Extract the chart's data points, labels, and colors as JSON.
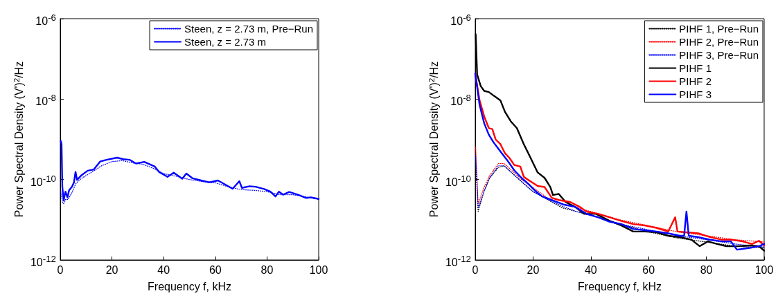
{
  "chart_data": [
    {
      "type": "line",
      "xlabel": "Frequency f, kHz",
      "ylabel": "Power Spectral Density (V')$^{2}$/Hz",
      "xlim": [
        0,
        100
      ],
      "xticks": [
        0,
        20,
        40,
        60,
        80,
        100
      ],
      "ylim": [
        1e-12,
        1e-06
      ],
      "yticks": [
        {
          "value": 1e-12,
          "label": "10$^{-12}$"
        },
        {
          "value": 1e-10,
          "label": "10$^{-10}$"
        },
        {
          "value": 1e-08,
          "label": "10$^{-8}$"
        },
        {
          "value": 1e-06,
          "label": "10$^{-6}$"
        }
      ],
      "log": "y",
      "legend": "top right",
      "marker": "none",
      "series": [
        {
          "name": "Steen, z = 2.73 m, Pre−Run",
          "color": "#0000ff",
          "line_style": "dotted",
          "x": [
            0.2,
            0.8,
            1.3,
            2,
            3,
            4.5,
            6,
            8,
            12,
            16,
            20,
            24,
            28,
            32,
            36,
            40,
            45,
            50,
            55,
            60,
            65,
            70,
            75,
            80,
            85,
            90,
            95,
            100
          ],
          "values": [
            5e-11,
            2.8e-11,
            2.5e-11,
            3.2e-11,
            3.2e-11,
            4.7e-11,
            7.9e-11,
            1.05e-10,
            1.5e-10,
            2.2e-10,
            2.8e-10,
            2.95e-10,
            2.6e-10,
            2.4e-10,
            1.9e-10,
            1.4e-10,
            1.2e-10,
            1e-10,
            8.9e-11,
            8.3e-11,
            6.6e-11,
            5.6e-11,
            5.4e-11,
            5e-11,
            4.2e-11,
            4.2e-11,
            3.7e-11,
            3.2e-11
          ]
        },
        {
          "name": "Steen, z = 2.73 m",
          "color": "#0000ff",
          "line_style": "solid",
          "x": [
            0.2,
            0.5,
            0.8,
            1.3,
            2,
            2.8,
            3.4,
            4.5,
            5.3,
            5.9,
            6.5,
            8.1,
            10.6,
            13,
            15.4,
            17.9,
            22,
            24.4,
            26.8,
            29.3,
            32.5,
            36.6,
            38.2,
            41.5,
            43.9,
            47.2,
            48.8,
            51.2,
            54.5,
            57.7,
            61,
            63.4,
            66.7,
            69.3,
            70.3,
            73.2,
            75.6,
            78.9,
            81.3,
            83.3,
            84.6,
            86.2,
            88.6,
            92,
            95,
            97,
            100
          ],
          "values": [
            9.1e-10,
            7.6e-10,
            6.6e-11,
            3e-11,
            5e-11,
            3.6e-11,
            5.4e-11,
            6.6e-11,
            8.5e-11,
            1.55e-10,
            9.8e-11,
            1.26e-10,
            1.66e-10,
            1.78e-10,
            2.8e-10,
            3.1e-10,
            3.5e-10,
            3.2e-10,
            3.1e-10,
            2.5e-10,
            2.75e-10,
            2.1e-10,
            1.55e-10,
            1.17e-10,
            1.48e-10,
            1.05e-10,
            1.41e-10,
            1.07e-10,
            9.5e-11,
            8.5e-11,
            9.5e-11,
            7.8e-11,
            5.9e-11,
            9.1e-11,
            6.2e-11,
            6.8e-11,
            6.6e-11,
            5.8e-11,
            5e-11,
            3.8e-11,
            5e-11,
            4.2e-11,
            4.9e-11,
            4.2e-11,
            3.5e-11,
            3.6e-11,
            3.3e-11
          ]
        }
      ]
    },
    {
      "type": "line",
      "xlabel": "Frequency f, kHz",
      "ylabel": "Power Spectral Density (V')$^{2}$/Hz",
      "xlim": [
        0,
        100
      ],
      "xticks": [
        0,
        20,
        40,
        60,
        80,
        100
      ],
      "ylim": [
        1e-12,
        1e-06
      ],
      "yticks": [
        {
          "value": 1e-12,
          "label": "10$^{-12}$"
        },
        {
          "value": 1e-10,
          "label": "10$^{-10}$"
        },
        {
          "value": 1e-08,
          "label": "10$^{-8}$"
        },
        {
          "value": 1e-06,
          "label": "10$^{-6}$"
        }
      ],
      "log": "y",
      "legend": "top right",
      "marker": "none",
      "series": [
        {
          "name": "PIHF 1, Pre−Run",
          "color": "#000000",
          "line_style": "dotted",
          "x": [
            0.15,
            1,
            3,
            5,
            8,
            10,
            13,
            16,
            20,
            25,
            30,
            35,
            40,
            50,
            60,
            70,
            80,
            90,
            100
          ],
          "values": [
            2.5e-10,
            1.6e-11,
            5e-11,
            1.1e-10,
            2e-10,
            2.2e-10,
            1.4e-10,
            8.9e-11,
            5e-11,
            3.2e-11,
            2e-11,
            1.6e-11,
            1.3e-11,
            7.9e-12,
            5e-12,
            3.5e-12,
            2.8e-12,
            2.2e-12,
            2e-12
          ]
        },
        {
          "name": "PIHF 2, Pre−Run",
          "color": "#ff0000",
          "line_style": "dotted",
          "x": [
            0.15,
            1,
            3,
            5,
            8,
            10,
            13,
            16,
            20,
            25,
            30,
            35,
            40,
            50,
            60,
            70,
            80,
            90,
            100
          ],
          "values": [
            6.3e-10,
            2.5e-11,
            6.3e-11,
            1.26e-10,
            2.5e-10,
            2.5e-10,
            1.6e-10,
            1e-10,
            6.3e-11,
            3.5e-11,
            2.5e-11,
            2e-11,
            1.6e-11,
            1e-11,
            7.1e-12,
            5e-12,
            4e-12,
            3.2e-12,
            2.8e-12
          ]
        },
        {
          "name": "PIHF 3, Pre−Run",
          "color": "#0000ff",
          "line_style": "dotted",
          "x": [
            0.15,
            1,
            3,
            5,
            8,
            10,
            13,
            16,
            20,
            25,
            30,
            35,
            40,
            50,
            60,
            70,
            80,
            90,
            100
          ],
          "values": [
            4e-10,
            2e-11,
            5e-11,
            1.1e-10,
            2.2e-10,
            2.2e-10,
            1.4e-10,
            8.9e-11,
            5e-11,
            3.2e-11,
            2.2e-11,
            1.6e-11,
            1.3e-11,
            7.9e-12,
            5.6e-12,
            4e-12,
            3.2e-12,
            2.5e-12,
            2.1e-12
          ]
        },
        {
          "name": "PIHF 1",
          "color": "#000000",
          "line_style": "solid",
          "x": [
            0.15,
            0.65,
            1.9,
            3.1,
            4.7,
            6.3,
            8.7,
            10.3,
            12.3,
            14.4,
            16.8,
            19.2,
            21.6,
            24,
            26,
            26.9,
            28.9,
            31.3,
            34.5,
            37.7,
            41.8,
            46.6,
            50.6,
            54.7,
            58.7,
            62.7,
            66.8,
            70.8,
            74.8,
            77.7,
            80.5,
            83.7,
            86.9,
            91,
            95,
            98.2,
            100
          ],
          "values": [
            4.1e-07,
            4.1e-08,
            2.1e-08,
            1.6e-08,
            1.5e-08,
            1.23e-08,
            9.3e-09,
            4.8e-09,
            2.8e-09,
            1.9e-09,
            7.6e-10,
            3.4e-10,
            1.5e-10,
            1.1e-10,
            6.5e-11,
            4.1e-11,
            4.4e-11,
            2.75e-11,
            2.1e-11,
            1.4e-11,
            1.4e-11,
            9.3e-12,
            7.2e-12,
            5.1e-12,
            5.1e-12,
            4.9e-12,
            4e-12,
            3.7e-12,
            3.2e-12,
            2.2e-12,
            2.9e-12,
            2.5e-12,
            2.2e-12,
            2.2e-12,
            2.3e-12,
            2.2e-12,
            1.7e-12
          ]
        },
        {
          "name": "PIHF 2",
          "color": "#ff0000",
          "line_style": "solid",
          "x": [
            0,
            1.5,
            3.1,
            4.7,
            5.9,
            7.1,
            8.7,
            10.3,
            11.9,
            13.5,
            15.6,
            16.8,
            19.2,
            21.6,
            24,
            26.5,
            28.9,
            32.9,
            36.1,
            38.5,
            42.6,
            46.6,
            50.6,
            54.7,
            58.7,
            62.7,
            66.8,
            69.2,
            70,
            73.2,
            77.2,
            81.3,
            85.3,
            88.5,
            92.5,
            95.8,
            98.2,
            100
          ],
          "values": [
            4.3e-08,
            9.3e-09,
            3.7e-09,
            1.9e-09,
            1.8e-09,
            9.8e-10,
            7.6e-10,
            4.5e-10,
            3.4e-10,
            2.3e-10,
            2.1e-10,
            1.17e-10,
            8.9e-11,
            6.9e-11,
            6.5e-11,
            3.5e-11,
            3.1e-11,
            2.75e-11,
            2.1e-11,
            1.6e-11,
            1.4e-11,
            1.15e-11,
            9.3e-12,
            7.8e-12,
            7.2e-12,
            6.3e-12,
            5.1e-12,
            1.15e-11,
            5.1e-12,
            4.9e-12,
            4.6e-12,
            3.7e-12,
            3.2e-12,
            3.2e-12,
            2.9e-12,
            2.5e-12,
            3e-12,
            2.3e-12
          ]
        },
        {
          "name": "PIHF 3",
          "color": "#0000ff",
          "line_style": "solid",
          "x": [
            0,
            1.5,
            3.1,
            4.7,
            6.3,
            8.7,
            11.1,
            13.5,
            16,
            18.3,
            20.8,
            23.2,
            26.5,
            30.5,
            34.5,
            38.5,
            42.6,
            46.6,
            50.6,
            54.7,
            58.7,
            62.7,
            66.8,
            70.8,
            72.3,
            73.1,
            73.9,
            77.2,
            81.3,
            85.3,
            88.5,
            90.6,
            95,
            98.2,
            100
          ],
          "values": [
            4.3e-08,
            7.2e-09,
            2.5e-09,
            1.3e-09,
            8.5e-10,
            5e-10,
            3e-10,
            1.7e-10,
            1.1e-10,
            7.9e-11,
            5.2e-11,
            3.8e-11,
            3.1e-11,
            2.4e-11,
            2.1e-11,
            1.4e-11,
            1.15e-11,
            8.9e-12,
            7.8e-12,
            5.9e-12,
            5.5e-12,
            5.1e-12,
            4.6e-12,
            4e-12,
            4e-12,
            1.6e-11,
            4e-12,
            3.7e-12,
            3.2e-12,
            2.9e-12,
            2.9e-12,
            1.8e-12,
            2e-12,
            2.2e-12,
            2.5e-12
          ]
        }
      ]
    }
  ]
}
